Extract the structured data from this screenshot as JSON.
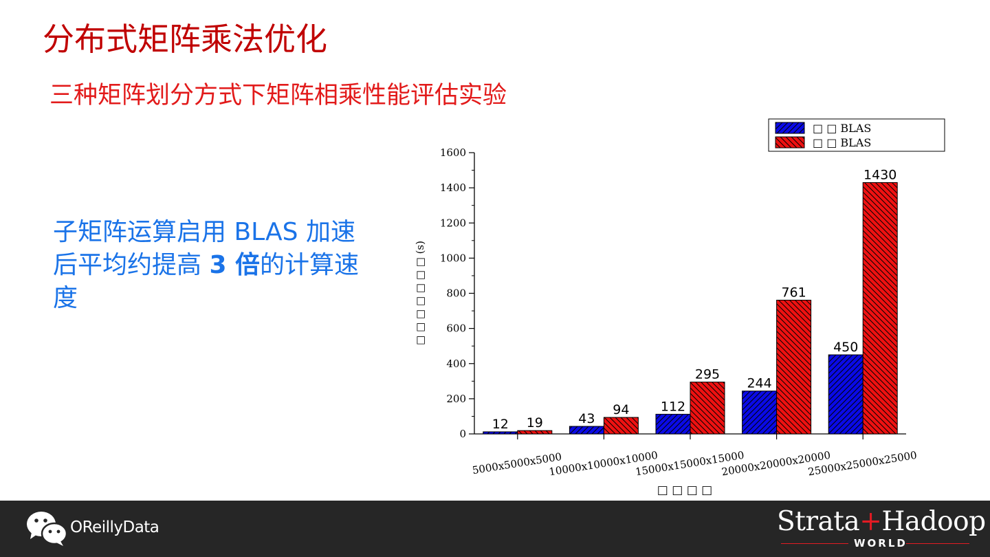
{
  "slide": {
    "title": "分布式矩阵乘法优化",
    "subtitle": "三种矩阵划分方式下矩阵相乘性能评估实验",
    "note_part1": "子矩阵运算启用 BLAS 加速后平均约提高 ",
    "note_bold": "3 倍",
    "note_part2": "的计算速度"
  },
  "footer": {
    "brand": "OReillyData",
    "logo_left": "Strata",
    "logo_plus": "+",
    "logo_right": "Hadoop",
    "logo_world": "WORLD",
    "icons": [
      "wechat-icon"
    ]
  },
  "chart_data": {
    "type": "bar",
    "categories": [
      "5000x5000x5000",
      "10000x10000x10000",
      "15000x15000x15000",
      "20000x20000x20000",
      "25000x25000x25000"
    ],
    "series": [
      {
        "name": "□ □  BLAS",
        "values": [
          12,
          43,
          112,
          244,
          450
        ],
        "color": "#0a0ae6",
        "hatch": "forward"
      },
      {
        "name": "□ □ BLAS",
        "values": [
          19,
          94,
          295,
          761,
          1430
        ],
        "color": "#ee1111",
        "hatch": "backward"
      }
    ],
    "ylim": [
      0,
      1600
    ],
    "yticks": [
      0,
      200,
      400,
      600,
      800,
      1000,
      1200,
      1400,
      1600
    ],
    "xlabel": "□ □ □ □",
    "ylabel": "□ □ □ □ □ □ □   (s)",
    "legend_position": "top-right",
    "grid": false
  }
}
